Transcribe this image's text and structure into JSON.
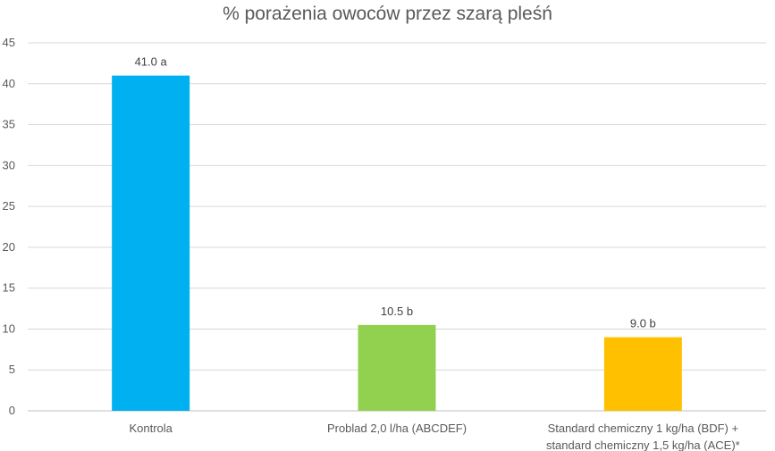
{
  "chart_data": {
    "type": "bar",
    "title": "% porażenia owoców przez szarą pleśń",
    "xlabel": "",
    "ylabel": "",
    "ylim": [
      0,
      45
    ],
    "yticks": [
      0,
      5,
      10,
      15,
      20,
      25,
      30,
      35,
      40,
      45
    ],
    "grid": true,
    "legend": "none",
    "categories": [
      [
        "Kontrola"
      ],
      [
        "Problad 2,0 l/ha (ABCDEF)"
      ],
      [
        "Standard chemiczny 1 kg/ha (BDF) +",
        "standard chemiczny 1,5 kg/ha (ACE)*"
      ]
    ],
    "values": [
      41.0,
      10.5,
      9.0
    ],
    "data_labels": [
      "41.0 a",
      "10.5 b",
      "9.0 b"
    ],
    "colors": [
      "#00B0F0",
      "#92D050",
      "#FFC000"
    ]
  }
}
